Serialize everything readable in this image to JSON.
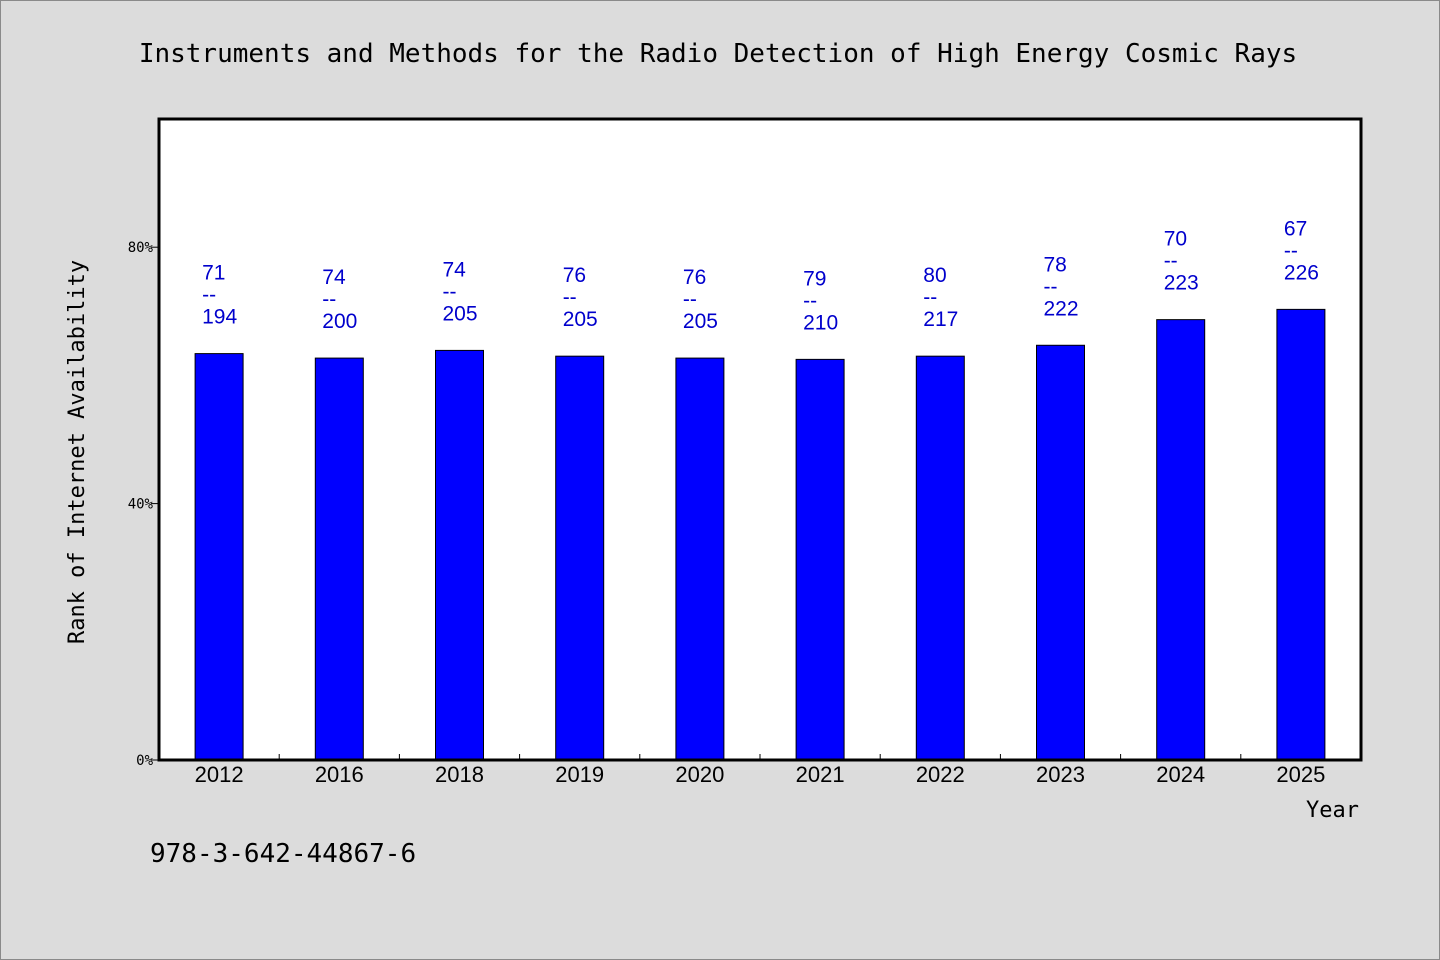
{
  "title": "Instruments and Methods for the Radio Detection of High Energy Cosmic Rays",
  "footer": "978-3-642-44867-6",
  "colors": {
    "background": "#dcdcdc",
    "plot_background": "#ffffff",
    "bar": "#0000ff",
    "bar_label": "#0000cc"
  },
  "chart_data": {
    "type": "bar",
    "title": "Instruments and Methods for the Radio Detection of High Energy Cosmic Rays",
    "xlabel": "Year",
    "ylabel": "Rank of Internet Availability",
    "categories": [
      "2012",
      "2016",
      "2018",
      "2019",
      "2020",
      "2021",
      "2022",
      "2023",
      "2024",
      "2025"
    ],
    "values": [
      63.4,
      62.7,
      63.9,
      63.0,
      62.7,
      62.5,
      63.0,
      64.7,
      68.7,
      70.3
    ],
    "ylim": [
      0,
      100
    ],
    "yticks": [
      0,
      40,
      80
    ],
    "ytick_labels": [
      "0%",
      "40%",
      "80%"
    ],
    "bar_labels": [
      {
        "top": "71",
        "sep": "--",
        "bottom": "194"
      },
      {
        "top": "74",
        "sep": "--",
        "bottom": "200"
      },
      {
        "top": "74",
        "sep": "--",
        "bottom": "205"
      },
      {
        "top": "76",
        "sep": "--",
        "bottom": "205"
      },
      {
        "top": "76",
        "sep": "--",
        "bottom": "205"
      },
      {
        "top": "79",
        "sep": "--",
        "bottom": "210"
      },
      {
        "top": "80",
        "sep": "--",
        "bottom": "217"
      },
      {
        "top": "78",
        "sep": "--",
        "bottom": "222"
      },
      {
        "top": "70",
        "sep": "--",
        "bottom": "223"
      },
      {
        "top": "67",
        "sep": "--",
        "bottom": "226"
      }
    ],
    "grid": false,
    "legend": "none"
  }
}
